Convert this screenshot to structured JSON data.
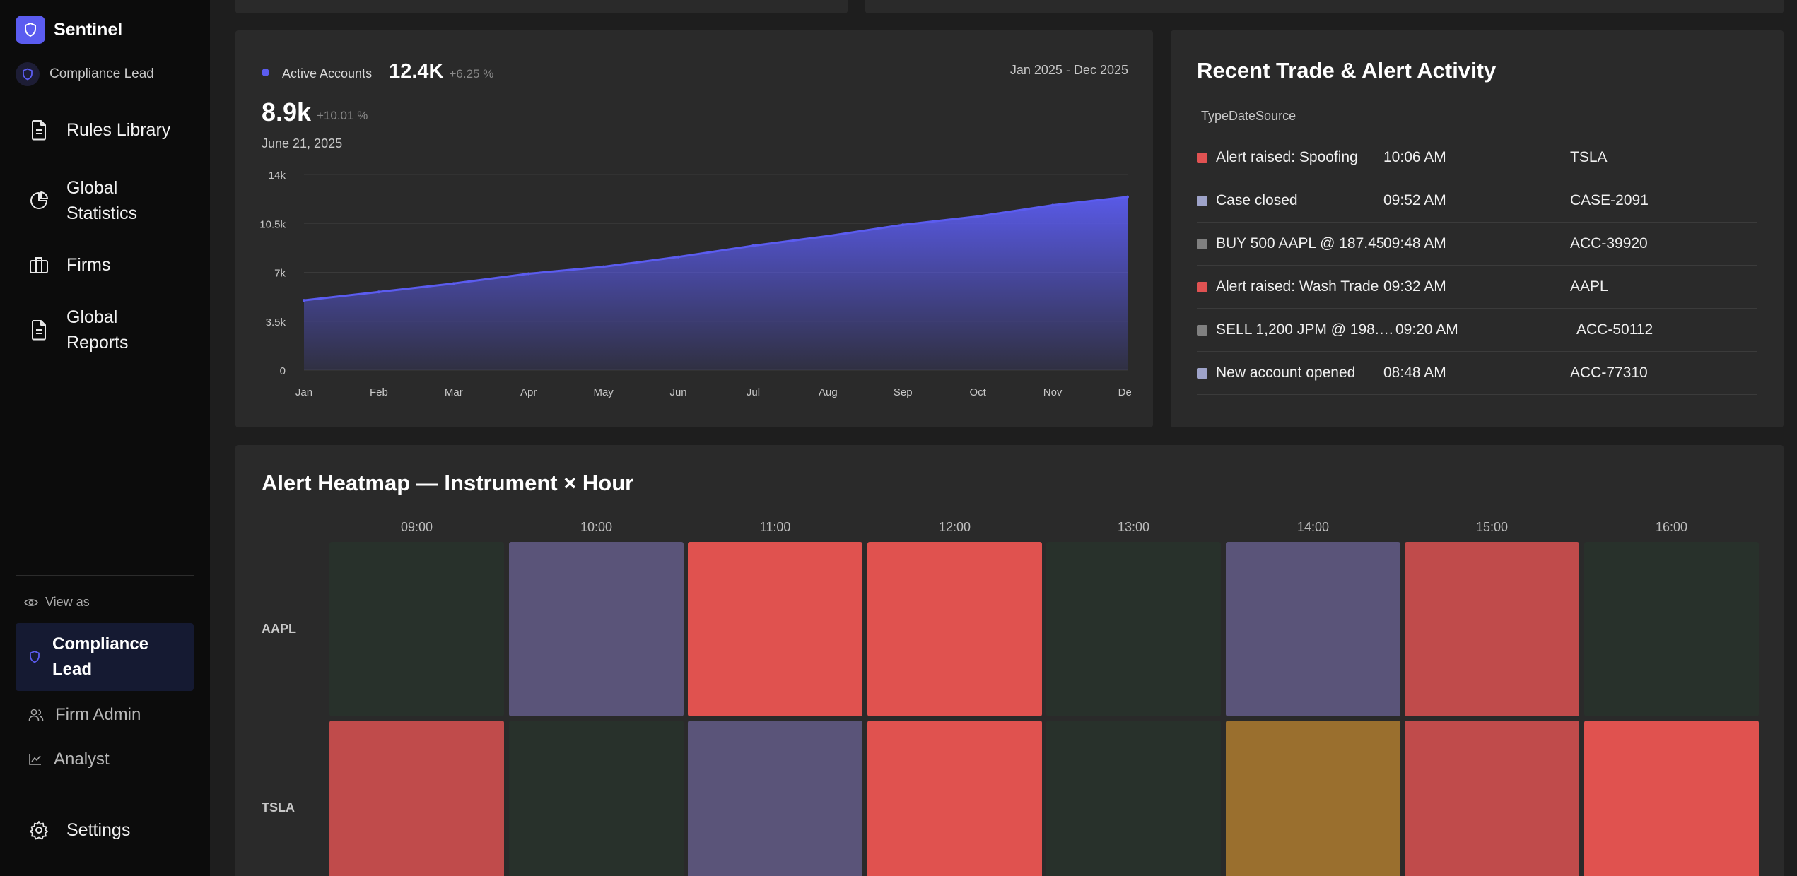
{
  "app": {
    "name": "Sentinel",
    "role_chip": "Compliance Lead"
  },
  "sidebar": {
    "nav": [
      {
        "label": "Rules Library",
        "icon": "document-icon"
      },
      {
        "label": "Global Statistics",
        "icon": "pie-chart-icon"
      },
      {
        "label": "Firms",
        "icon": "briefcase-icon"
      },
      {
        "label": "Global Reports",
        "icon": "report-icon"
      }
    ],
    "view_as_label": "View as",
    "roles": [
      {
        "label": "Compliance Lead",
        "active": true,
        "icon": "shield-icon"
      },
      {
        "label": "Firm Admin",
        "active": false,
        "icon": "users-icon"
      },
      {
        "label": "Analyst",
        "active": false,
        "icon": "line-chart-icon"
      }
    ],
    "settings_label": "Settings"
  },
  "accounts_chart": {
    "legend_label": "Active Accounts",
    "legend_value": "12.4K",
    "legend_change": "+6.25 %",
    "date_range": "Jan 2025 - Dec 2025",
    "focus_value": "8.9k",
    "focus_change": "+10.01 %",
    "focus_date": "June 21, 2025"
  },
  "chart_data": {
    "type": "area",
    "title": "",
    "xlabel": "",
    "ylabel": "",
    "x": [
      "Jan",
      "Feb",
      "Mar",
      "Apr",
      "May",
      "Jun",
      "Jul",
      "Aug",
      "Sep",
      "Oct",
      "Nov",
      "Dec"
    ],
    "yticks": [
      "0",
      "3.5k",
      "7k",
      "10.5k",
      "14k"
    ],
    "ylim": [
      0,
      14000
    ],
    "grid": true,
    "series": [
      {
        "values": [
          5000,
          5600,
          6200,
          6900,
          7400,
          8100,
          8900,
          9600,
          10400,
          11000,
          11800,
          12400
        ],
        "color": "#5b5cf0"
      }
    ]
  },
  "activity": {
    "title": "Recent Trade & Alert Activity",
    "header": "TypeDateSource",
    "rows": [
      {
        "type": "Alert raised: Spoofing",
        "time": "10:06 AM",
        "source": "TSLA",
        "color": "#e05252"
      },
      {
        "type": "Case closed",
        "time": "09:52 AM",
        "source": "CASE-2091",
        "color": "#9ea3c9"
      },
      {
        "type": "BUY 500 AAPL @ 187.45",
        "time": "09:48 AM",
        "source": "ACC-39920",
        "color": "#808080"
      },
      {
        "type": "Alert raised: Wash Trade",
        "time": "09:32 AM",
        "source": "AAPL",
        "color": "#e05252"
      },
      {
        "type": "SELL 1,200 JPM @ 198.…",
        "time": "09:20 AM",
        "source": "ACC-50112",
        "color": "#808080"
      },
      {
        "type": "New account opened",
        "time": "08:48 AM",
        "source": "ACC-77310",
        "color": "#9ea3c9"
      }
    ]
  },
  "heatmap": {
    "title": "Alert Heatmap — Instrument × Hour",
    "hours": [
      "09:00",
      "10:00",
      "11:00",
      "12:00",
      "13:00",
      "14:00",
      "15:00",
      "16:00"
    ],
    "instruments": [
      "AAPL",
      "TSLA"
    ],
    "cell_colors": [
      [
        "#28312b",
        "#5a5479",
        "#e0524f",
        "#e0524f",
        "#28312b",
        "#5a5479",
        "#c04b4b",
        "#28312b"
      ],
      [
        "#c04b4b",
        "#28312b",
        "#5a5479",
        "#e0524f",
        "#28312b",
        "#9a6f2e",
        "#c04b4b",
        "#e0524f"
      ]
    ]
  }
}
